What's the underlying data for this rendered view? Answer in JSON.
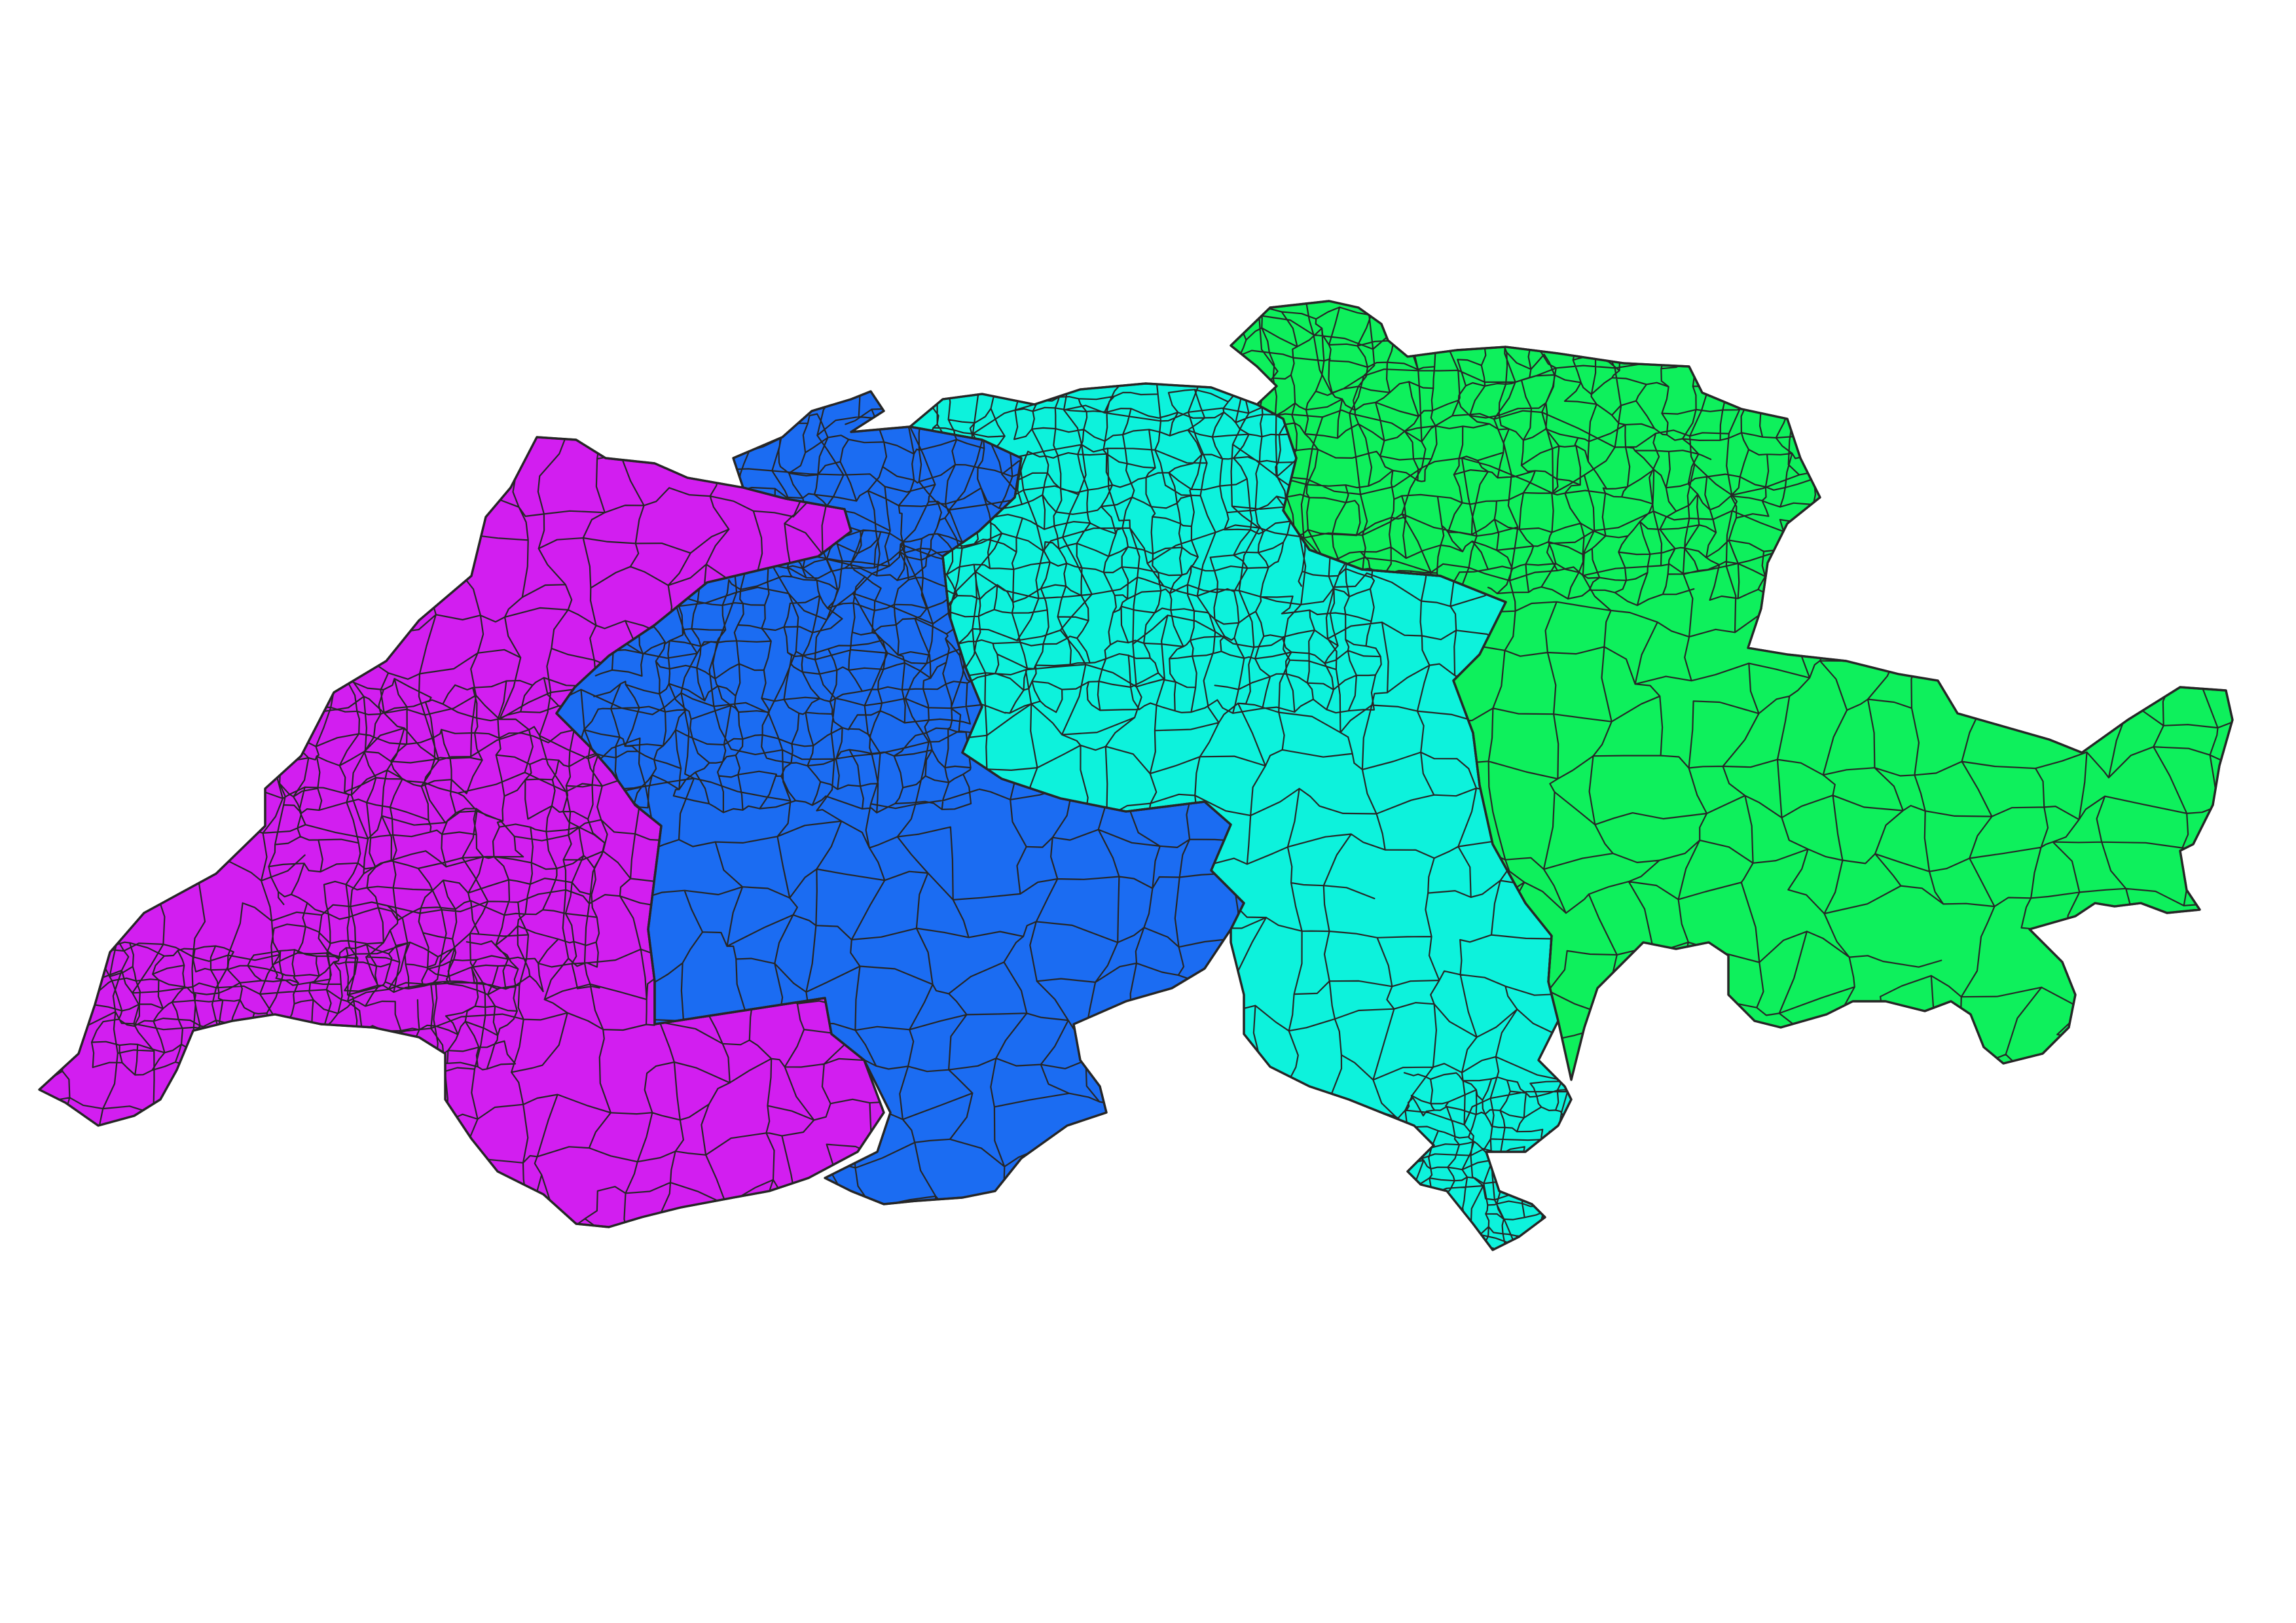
{
  "map": {
    "type": "choropleth",
    "regions": [
      {
        "key": "west",
        "color": "#d21ef0"
      },
      {
        "key": "west-central",
        "color": "#1b6cf2"
      },
      {
        "key": "central",
        "color": "#0df2dc"
      },
      {
        "key": "east",
        "color": "#0ef05c"
      }
    ],
    "border_color": "#262626",
    "background": "#ffffff"
  }
}
